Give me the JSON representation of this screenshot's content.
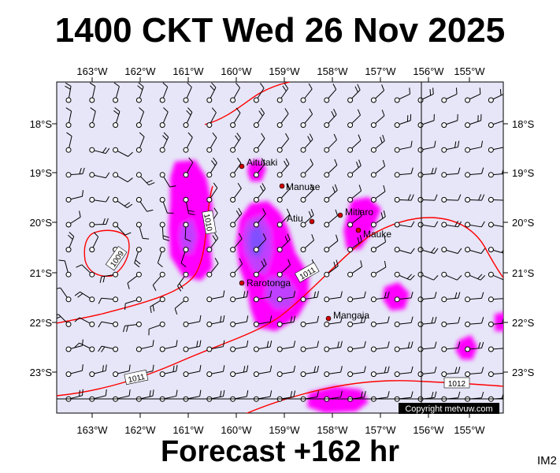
{
  "title": "1400 CKT Wed 26 Nov 2025",
  "footer": "Forecast +162 hr",
  "image_code": "IM2",
  "copyright": "Copyright metvuw.com",
  "longitude_labels": [
    "163°W",
    "162°W",
    "161°W",
    "160°W",
    "159°W",
    "158°W",
    "157°W",
    "156°W",
    "155°W"
  ],
  "latitude_labels": [
    "18°S",
    "19°S",
    "20°S",
    "21°S",
    "22°S",
    "23°S"
  ],
  "places": [
    {
      "name": "Aitutaki"
    },
    {
      "name": "Manuae"
    },
    {
      "name": "Atiu"
    },
    {
      "name": "Mitiaro"
    },
    {
      "name": "Mauke"
    },
    {
      "name": "Rarotonga"
    },
    {
      "name": "Mangaia"
    }
  ],
  "isobar_labels": [
    "1009",
    "1010",
    "1011",
    "1011",
    "1012"
  ],
  "colors": {
    "map_background": "#e6e6f8",
    "isobar": "#ff0000",
    "rain_light": "#ff00ff",
    "rain_medium": "#c040ff",
    "rain_heavy": "#8050ff",
    "place_marker": "#cc0000"
  }
}
